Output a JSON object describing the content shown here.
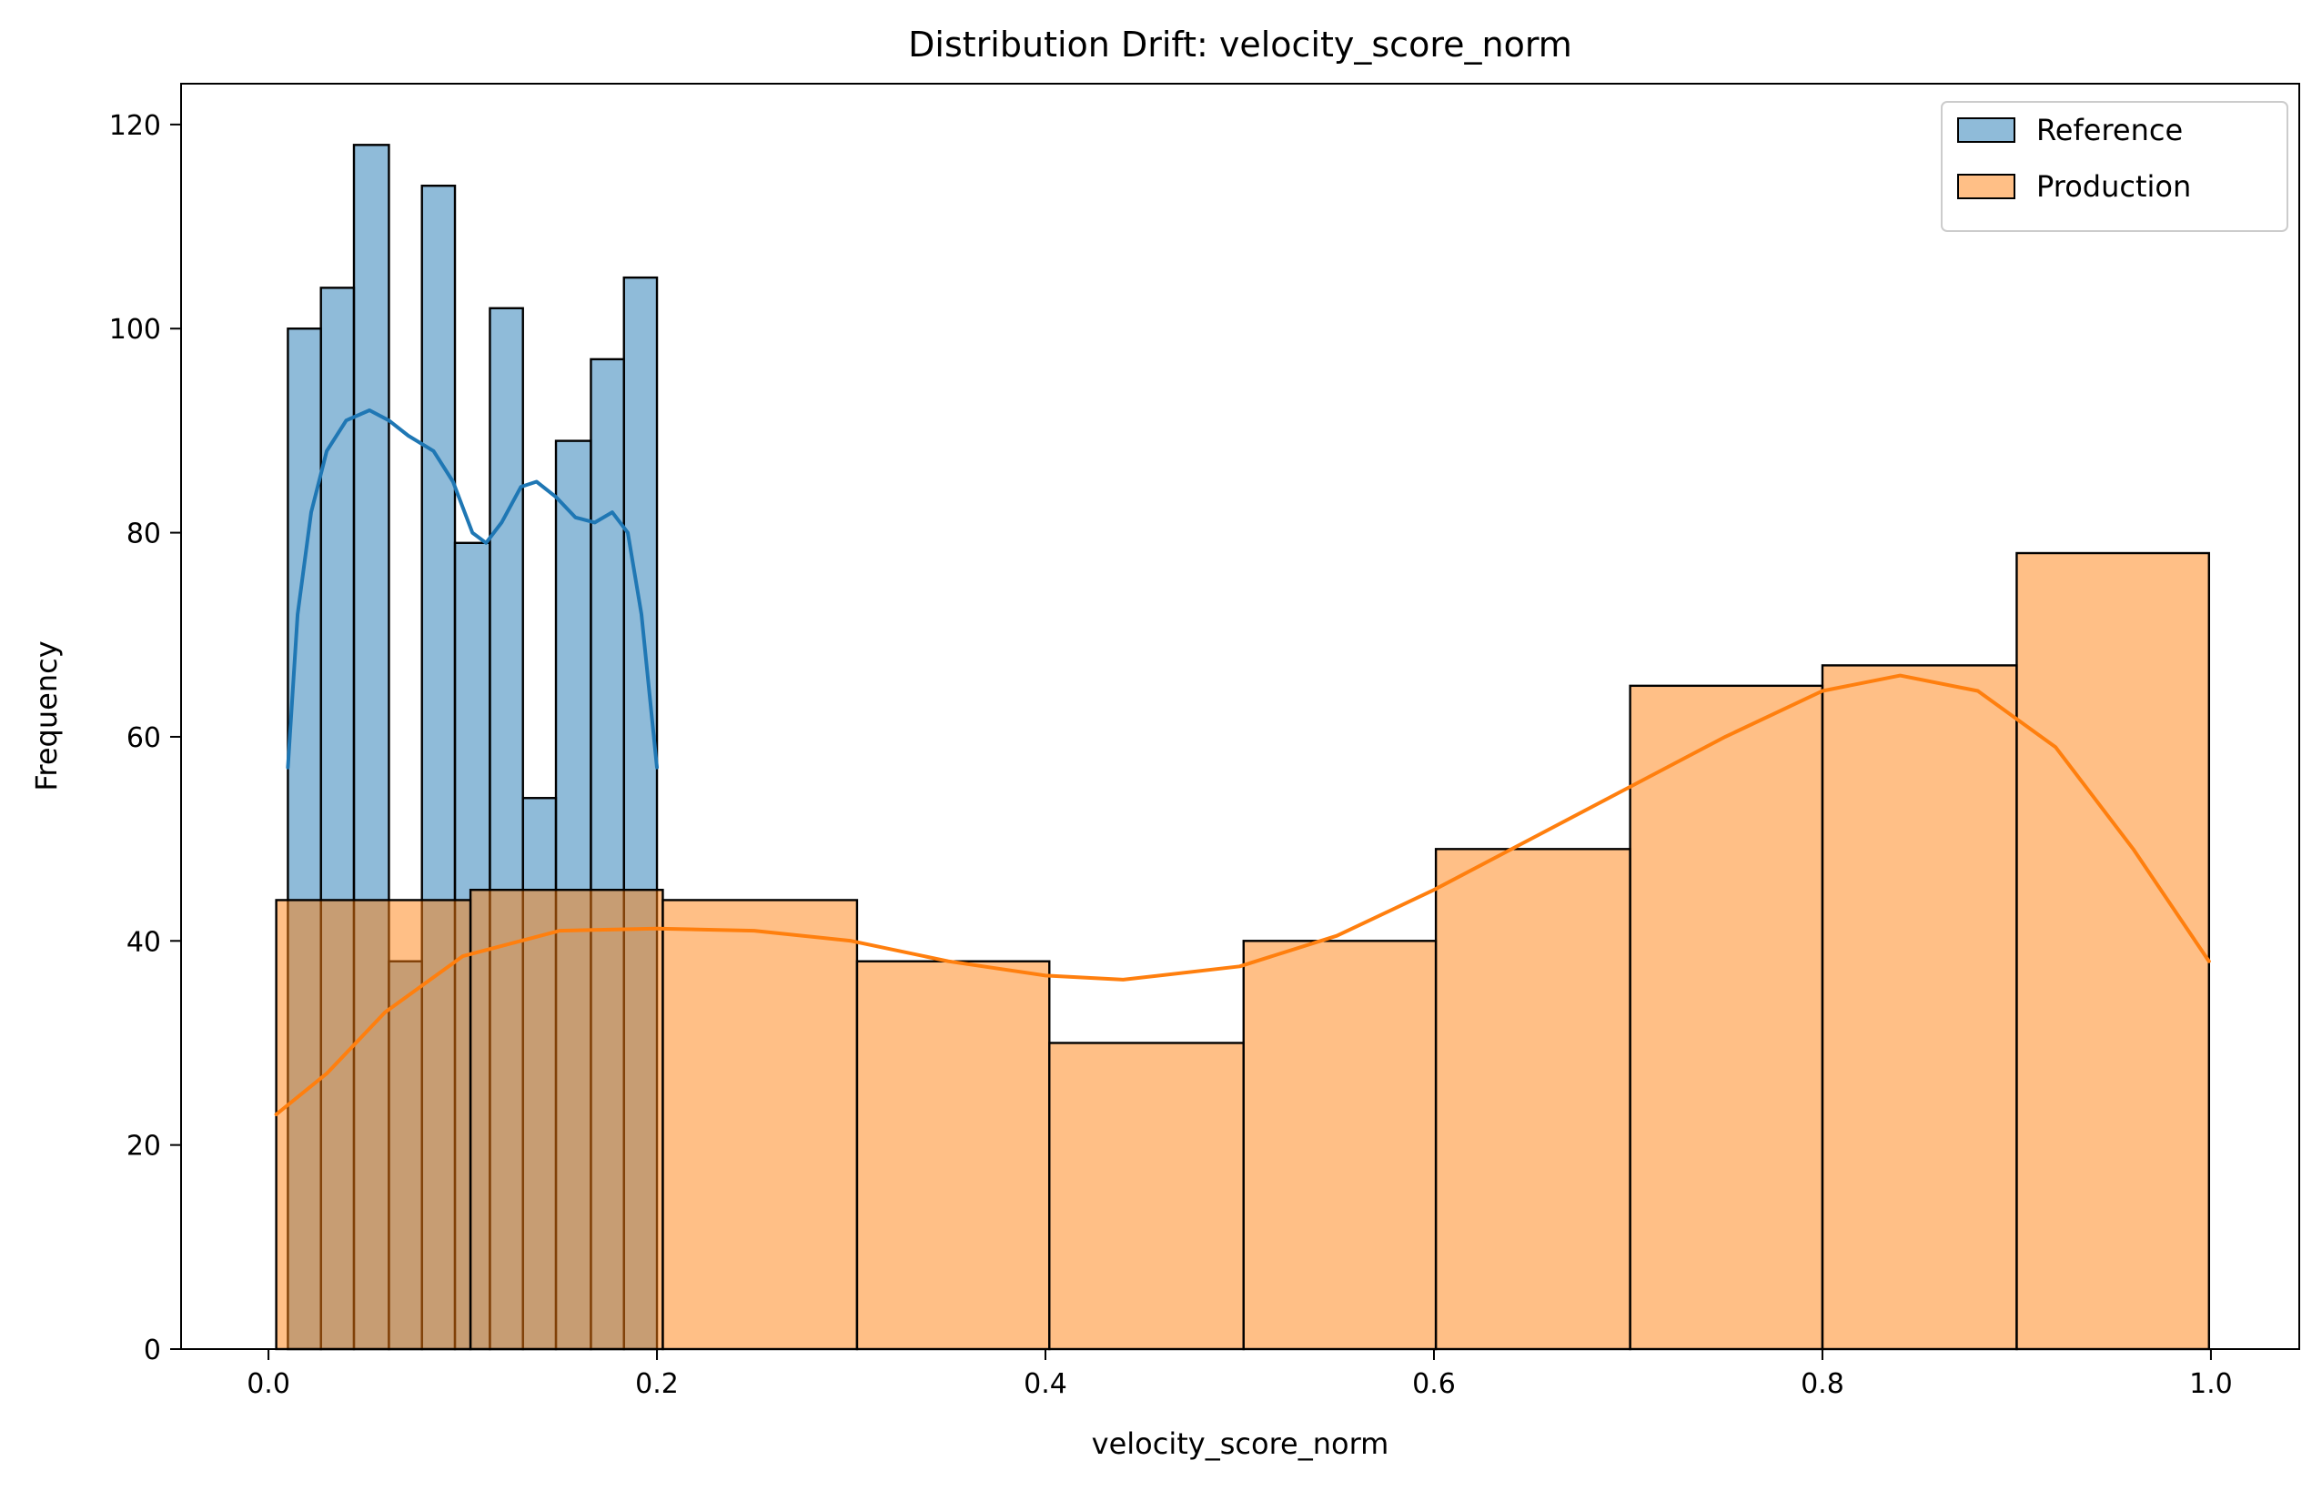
{
  "chart_data": {
    "type": "histogram",
    "title": "Distribution Drift: velocity_score_norm",
    "xlabel": "velocity_score_norm",
    "ylabel": "Frequency",
    "xlim": [
      -0.045,
      1.045
    ],
    "ylim": [
      0,
      124
    ],
    "xticks": [
      0.0,
      0.2,
      0.4,
      0.6,
      0.8,
      1.0
    ],
    "xtick_labels": [
      "0.0",
      "0.2",
      "0.4",
      "0.6",
      "0.8",
      "1.0"
    ],
    "yticks": [
      0,
      20,
      40,
      60,
      80,
      100,
      120
    ],
    "ytick_labels": [
      "0",
      "20",
      "40",
      "60",
      "80",
      "100",
      "120"
    ],
    "grid": false,
    "legend_position": "top-right",
    "series": [
      {
        "name": "Reference",
        "color": "#1f77b4",
        "bins": [
          {
            "x0": 0.01,
            "x1": 0.027,
            "count": 100
          },
          {
            "x0": 0.027,
            "x1": 0.044,
            "count": 104
          },
          {
            "x0": 0.044,
            "x1": 0.062,
            "count": 118
          },
          {
            "x0": 0.062,
            "x1": 0.079,
            "count": 38
          },
          {
            "x0": 0.079,
            "x1": 0.096,
            "count": 114
          },
          {
            "x0": 0.096,
            "x1": 0.114,
            "count": 79
          },
          {
            "x0": 0.114,
            "x1": 0.131,
            "count": 102
          },
          {
            "x0": 0.131,
            "x1": 0.148,
            "count": 54
          },
          {
            "x0": 0.148,
            "x1": 0.166,
            "count": 89
          },
          {
            "x0": 0.166,
            "x1": 0.183,
            "count": 97
          },
          {
            "x0": 0.183,
            "x1": 0.2,
            "count": 105
          }
        ],
        "kde": [
          [
            0.01,
            57
          ],
          [
            0.015,
            72
          ],
          [
            0.022,
            82
          ],
          [
            0.03,
            88
          ],
          [
            0.04,
            91
          ],
          [
            0.052,
            92
          ],
          [
            0.062,
            91
          ],
          [
            0.072,
            89.5
          ],
          [
            0.085,
            88
          ],
          [
            0.095,
            85
          ],
          [
            0.105,
            80
          ],
          [
            0.112,
            79
          ],
          [
            0.12,
            81
          ],
          [
            0.13,
            84.5
          ],
          [
            0.138,
            85
          ],
          [
            0.148,
            83.5
          ],
          [
            0.158,
            81.5
          ],
          [
            0.168,
            81
          ],
          [
            0.177,
            82
          ],
          [
            0.185,
            80
          ],
          [
            0.192,
            72
          ],
          [
            0.2,
            57
          ]
        ]
      },
      {
        "name": "Production",
        "color": "#ff7f0e",
        "bins": [
          {
            "x0": 0.004,
            "x1": 0.104,
            "count": 44
          },
          {
            "x0": 0.104,
            "x1": 0.203,
            "count": 45
          },
          {
            "x0": 0.203,
            "x1": 0.303,
            "count": 44
          },
          {
            "x0": 0.303,
            "x1": 0.402,
            "count": 38
          },
          {
            "x0": 0.402,
            "x1": 0.502,
            "count": 30
          },
          {
            "x0": 0.502,
            "x1": 0.601,
            "count": 40
          },
          {
            "x0": 0.601,
            "x1": 0.701,
            "count": 49
          },
          {
            "x0": 0.701,
            "x1": 0.8,
            "count": 65
          },
          {
            "x0": 0.8,
            "x1": 0.9,
            "count": 67
          },
          {
            "x0": 0.9,
            "x1": 0.999,
            "count": 78
          }
        ],
        "kde": [
          [
            0.004,
            23
          ],
          [
            0.03,
            27
          ],
          [
            0.06,
            33
          ],
          [
            0.1,
            38.5
          ],
          [
            0.15,
            41
          ],
          [
            0.2,
            41.2
          ],
          [
            0.25,
            41
          ],
          [
            0.3,
            40
          ],
          [
            0.35,
            38
          ],
          [
            0.4,
            36.6
          ],
          [
            0.44,
            36.2
          ],
          [
            0.5,
            37.5
          ],
          [
            0.55,
            40.5
          ],
          [
            0.6,
            45
          ],
          [
            0.65,
            50
          ],
          [
            0.7,
            55
          ],
          [
            0.75,
            60
          ],
          [
            0.8,
            64.5
          ],
          [
            0.84,
            66
          ],
          [
            0.88,
            64.5
          ],
          [
            0.92,
            59
          ],
          [
            0.96,
            49
          ],
          [
            0.999,
            38
          ]
        ]
      }
    ]
  }
}
